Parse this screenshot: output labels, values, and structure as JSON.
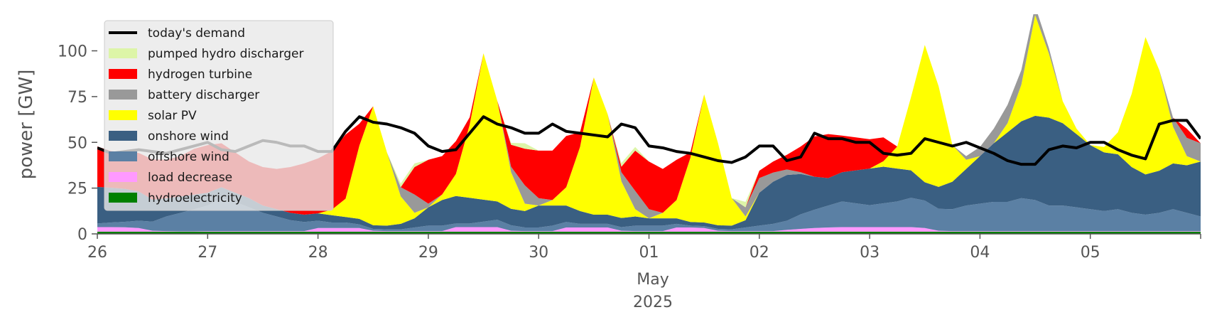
{
  "chart_data": {
    "type": "area",
    "stacked": true,
    "title": "",
    "xlabel": "",
    "ylabel": "power [GW]",
    "ylim": [
      0,
      120
    ],
    "xlim_hours": [
      0,
      240
    ],
    "yticks": [
      0,
      25,
      50,
      75,
      100
    ],
    "xticks": [
      {
        "hour": 0,
        "label": "26"
      },
      {
        "hour": 24,
        "label": "27"
      },
      {
        "hour": 48,
        "label": "28"
      },
      {
        "hour": 72,
        "label": "29"
      },
      {
        "hour": 96,
        "label": "30"
      },
      {
        "hour": 120,
        "label": "01"
      },
      {
        "hour": 144,
        "label": "02"
      },
      {
        "hour": 168,
        "label": "03"
      },
      {
        "hour": 192,
        "label": "04"
      },
      {
        "hour": 216,
        "label": "05"
      }
    ],
    "x_month_label": "May",
    "x_year_label": "2025",
    "grid": false,
    "legend_position": "top-left",
    "x": [
      0,
      3,
      6,
      9,
      12,
      15,
      18,
      21,
      24,
      27,
      30,
      33,
      36,
      39,
      42,
      45,
      48,
      51,
      54,
      57,
      60,
      63,
      66,
      69,
      72,
      75,
      78,
      81,
      84,
      87,
      90,
      93,
      96,
      99,
      102,
      105,
      108,
      111,
      114,
      117,
      120,
      123,
      126,
      129,
      132,
      135,
      138,
      141,
      144,
      147,
      150,
      153,
      156,
      159,
      162,
      165,
      168,
      171,
      174,
      177,
      180,
      183,
      186,
      189,
      192,
      195,
      198,
      201,
      204,
      207,
      210,
      213,
      216,
      219,
      222,
      225,
      228,
      231,
      234,
      237,
      240
    ],
    "series": [
      {
        "name": "hydroelectricity",
        "color": "#008000",
        "values": [
          1.2,
          1.2,
          1.2,
          1.2,
          1.2,
          1.2,
          1.2,
          1.2,
          1.2,
          1.2,
          1.2,
          1.2,
          1.2,
          1.2,
          1.2,
          1.2,
          1.2,
          1.2,
          1.2,
          1.2,
          1.2,
          1.2,
          1.2,
          1.2,
          1.2,
          1.2,
          1.2,
          1.2,
          1.2,
          1.2,
          1.2,
          1.2,
          1.2,
          1.2,
          1.2,
          1.2,
          1.2,
          1.2,
          1.2,
          1.2,
          1.2,
          1.2,
          1.2,
          1.2,
          1.2,
          1.2,
          1.2,
          1.2,
          1.2,
          1.2,
          1.2,
          1.2,
          1.2,
          1.2,
          1.2,
          1.2,
          1.2,
          1.2,
          1.2,
          1.2,
          1.2,
          1.2,
          1.2,
          1.2,
          1.2,
          1.2,
          1.2,
          1.2,
          1.2,
          1.2,
          1.2,
          1.2,
          1.2,
          1.2,
          1.2,
          1.2,
          1.2,
          1.2,
          1.2,
          1.2,
          1.2
        ]
      },
      {
        "name": "load decrease",
        "color": "#ff99ff",
        "values": [
          2.5,
          2.5,
          2.4,
          2,
          0.5,
          0.3,
          0.2,
          0.2,
          0.3,
          0.3,
          0.3,
          0.3,
          0.3,
          0.3,
          0.3,
          0.3,
          2,
          2,
          2,
          2,
          0.5,
          0.3,
          0.3,
          0.3,
          0.3,
          0.3,
          2.5,
          2.5,
          2.5,
          2.5,
          0.5,
          0.3,
          0.3,
          0.3,
          2.3,
          2.3,
          2.3,
          2.3,
          0.5,
          0.3,
          0.3,
          0.3,
          2.3,
          2.3,
          2,
          0.5,
          0.3,
          0.3,
          0.3,
          0.3,
          1,
          1.5,
          2,
          2.3,
          2.5,
          2.5,
          2.5,
          2.5,
          2.5,
          2.5,
          2,
          0.5,
          0.3,
          0.3,
          0.3,
          0.3,
          0.3,
          0.3,
          0.3,
          0.3,
          0.3,
          0.3,
          0.3,
          0.3,
          0.3,
          0.3,
          0.3,
          0.3,
          0.3,
          0.3,
          0.3
        ]
      },
      {
        "name": "offshore wind",
        "color": "#5b80a4",
        "values": [
          2,
          2.5,
          3,
          4,
          5,
          8,
          10,
          12,
          14,
          18,
          16,
          13,
          10,
          8,
          6,
          5,
          4,
          3,
          3,
          2,
          1,
          1,
          1,
          2,
          3,
          3,
          2,
          2,
          3,
          4,
          3,
          2,
          2,
          3,
          3,
          2,
          2,
          2,
          2,
          3,
          3,
          3,
          2,
          1,
          1,
          1,
          1,
          2,
          3,
          4,
          5,
          8,
          10,
          12,
          14,
          13,
          12,
          13,
          14,
          16,
          15,
          12,
          12,
          14,
          15,
          16,
          16,
          18,
          17,
          14,
          14,
          13,
          12,
          11,
          12,
          10,
          9,
          10,
          12,
          10,
          8
        ]
      },
      {
        "name": "onshore wind",
        "color": "#3a5f82",
        "values": [
          20,
          19,
          18,
          16,
          12,
          10,
          9,
          8,
          7,
          6,
          5,
          5,
          4,
          4,
          4,
          4,
          4,
          4,
          3,
          3,
          2,
          2,
          3,
          5,
          10,
          14,
          15,
          14,
          12,
          10,
          9,
          9,
          12,
          11,
          9,
          7,
          5,
          5,
          5,
          5,
          4,
          4,
          3,
          2,
          2,
          2,
          2,
          4,
          18,
          23,
          25,
          22,
          18,
          15,
          16,
          18,
          20,
          20,
          18,
          15,
          10,
          12,
          15,
          20,
          26,
          32,
          38,
          42,
          46,
          48,
          45,
          40,
          35,
          32,
          30,
          25,
          22,
          23,
          25,
          26,
          30
        ]
      },
      {
        "name": "solar PV",
        "color": "#ffff00",
        "values": [
          0,
          0,
          0,
          0,
          0,
          0,
          0,
          0,
          0,
          0,
          0,
          0,
          0,
          0,
          0,
          0,
          0,
          3,
          10,
          40,
          65,
          40,
          15,
          3,
          0,
          3,
          12,
          40,
          80,
          55,
          20,
          4,
          0,
          3,
          10,
          35,
          75,
          55,
          20,
          4,
          0,
          3,
          10,
          35,
          70,
          45,
          15,
          2,
          0,
          0,
          0,
          0,
          0,
          0,
          0,
          0,
          0,
          3,
          12,
          40,
          75,
          55,
          20,
          5,
          0,
          0,
          5,
          20,
          55,
          35,
          12,
          3,
          0,
          3,
          12,
          40,
          75,
          55,
          20,
          5,
          0
        ]
      },
      {
        "name": "battery discharger",
        "color": "#999999",
        "values": [
          0,
          0,
          0,
          0,
          0,
          0,
          0,
          0,
          0,
          0,
          0,
          0,
          0,
          0,
          0,
          0,
          0,
          0,
          0,
          0,
          0,
          0,
          5,
          10,
          2,
          0,
          0,
          0,
          0,
          0,
          3,
          10,
          4,
          0,
          0,
          0,
          0,
          0,
          5,
          10,
          5,
          0,
          0,
          0,
          0,
          0,
          0,
          5,
          8,
          5,
          3,
          1,
          0,
          0,
          0,
          0,
          0,
          0,
          0,
          0,
          0,
          0,
          0,
          2,
          5,
          8,
          10,
          8,
          5,
          3,
          0,
          0,
          0,
          0,
          0,
          0,
          0,
          0,
          5,
          10,
          10
        ]
      },
      {
        "name": "hydrogen turbine",
        "color": "#ff0000",
        "values": [
          22,
          20,
          20,
          21,
          22,
          21,
          22,
          25,
          26,
          24,
          22,
          20,
          21,
          22,
          25,
          28,
          30,
          32,
          35,
          12,
          0,
          0,
          0,
          15,
          24,
          21,
          18,
          4,
          0,
          0,
          12,
          20,
          26,
          27,
          28,
          8,
          0,
          0,
          3,
          22,
          26,
          24,
          22,
          3,
          0,
          0,
          0,
          0,
          4,
          6,
          8,
          14,
          22,
          24,
          20,
          18,
          16,
          13,
          0,
          0,
          0,
          0,
          0,
          0,
          0,
          0,
          0,
          0,
          0,
          0,
          0,
          0,
          0,
          0,
          0,
          0,
          0,
          0,
          0,
          5,
          0
        ]
      },
      {
        "name": "pumped hydro discharger",
        "color": "#ddf5a8",
        "values": [
          0,
          0,
          0,
          0,
          0,
          0,
          0,
          0,
          0,
          0,
          0,
          0,
          0,
          0,
          0,
          0,
          0,
          0,
          0,
          0,
          0,
          0,
          2,
          2,
          0,
          0,
          0,
          0,
          0,
          0,
          1,
          3,
          0,
          0,
          0,
          0,
          0,
          0,
          2,
          2,
          0,
          0,
          0,
          0,
          0,
          0,
          0,
          3,
          0,
          0,
          0,
          0,
          0,
          0,
          0,
          0,
          0,
          0,
          0,
          0,
          0,
          0,
          0,
          0,
          0,
          0,
          0,
          0,
          0,
          0,
          0,
          0,
          0,
          0,
          0,
          0,
          0,
          0,
          0,
          0,
          0
        ]
      }
    ],
    "demand": {
      "name": "today's demand",
      "color": "#000000",
      "values": [
        47,
        44,
        45,
        46,
        45,
        44,
        46,
        48,
        50,
        46,
        45,
        48,
        51,
        50,
        48,
        48,
        45,
        45,
        56,
        64,
        61,
        60,
        58,
        55,
        48,
        45,
        46,
        55,
        64,
        60,
        58,
        55,
        55,
        60,
        56,
        55,
        54,
        53,
        60,
        58,
        48,
        47,
        45,
        44,
        42,
        40,
        39,
        42,
        48,
        48,
        40,
        42,
        55,
        52,
        52,
        50,
        50,
        44,
        43,
        44,
        52,
        50,
        48,
        50,
        47,
        44,
        40,
        38,
        38,
        46,
        48,
        47,
        50,
        50,
        46,
        43,
        41,
        60,
        62,
        62,
        52
      ]
    },
    "legend": [
      {
        "label": "today's demand",
        "kind": "line",
        "color": "#000000"
      },
      {
        "label": "pumped hydro discharger",
        "kind": "patch",
        "color": "#ddf5a8"
      },
      {
        "label": "hydrogen turbine",
        "kind": "patch",
        "color": "#ff0000"
      },
      {
        "label": "battery discharger",
        "kind": "patch",
        "color": "#999999"
      },
      {
        "label": "solar PV",
        "kind": "patch",
        "color": "#ffff00"
      },
      {
        "label": "onshore wind",
        "kind": "patch",
        "color": "#3a5f82"
      },
      {
        "label": "offshore wind",
        "kind": "patch",
        "color": "#5b80a4"
      },
      {
        "label": "load decrease",
        "kind": "patch",
        "color": "#ff99ff"
      },
      {
        "label": "hydroelectricity",
        "kind": "patch",
        "color": "#008000"
      }
    ]
  }
}
